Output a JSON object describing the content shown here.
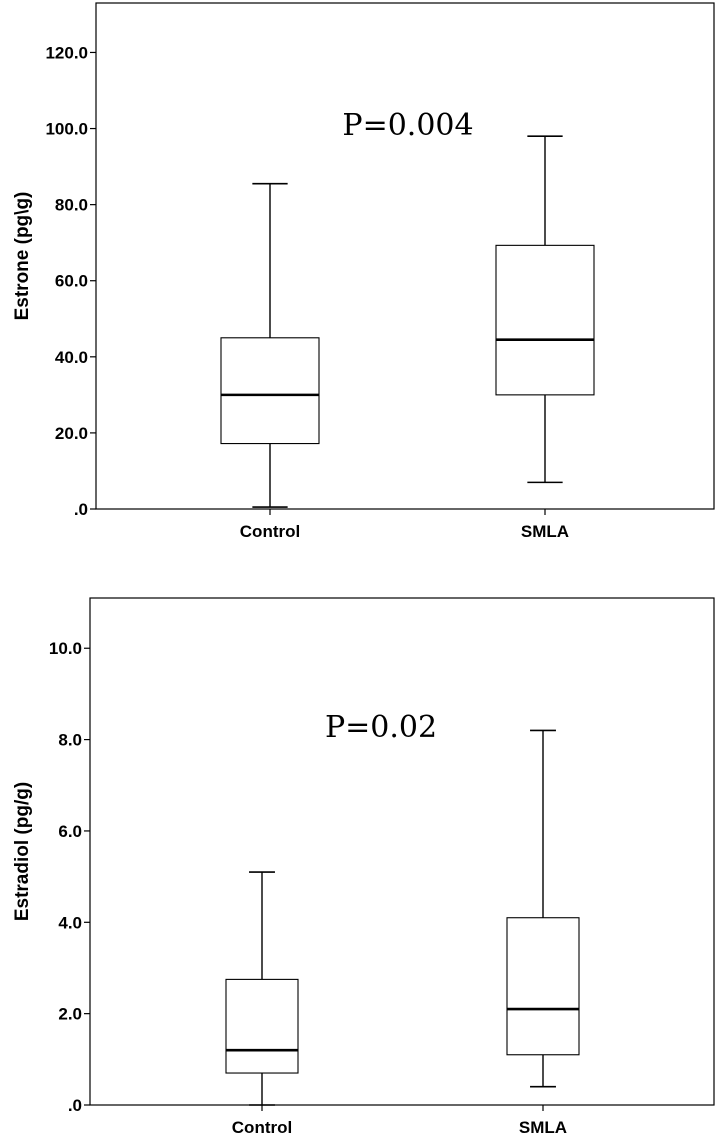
{
  "chart_data": [
    {
      "type": "box",
      "ylabel": "Estrone (pg\\g)",
      "ylim": [
        0,
        133
      ],
      "yticks": [
        0,
        20,
        40,
        60,
        80,
        100,
        120
      ],
      "ytick_labels": [
        ".0",
        "20.0",
        "40.0",
        "60.0",
        "80.0",
        "100.0",
        "120.0"
      ],
      "categories": [
        "Control",
        "SMLA"
      ],
      "annotation": "P=0.004",
      "boxes": [
        {
          "name": "Control",
          "min": 0.5,
          "q1": 17.2,
          "median": 30.0,
          "q3": 45.0,
          "max": 85.5
        },
        {
          "name": "SMLA",
          "min": 7.0,
          "q1": 30.0,
          "median": 44.5,
          "q3": 69.3,
          "max": 98.0
        }
      ]
    },
    {
      "type": "box",
      "ylabel": "Estradiol (pg/g)",
      "ylim": [
        0,
        11.1
      ],
      "yticks": [
        0,
        2,
        4,
        6,
        8,
        10
      ],
      "ytick_labels": [
        ".0",
        "2.0",
        "4.0",
        "6.0",
        "8.0",
        "10.0"
      ],
      "categories": [
        "Control",
        "SMLA"
      ],
      "annotation": "P=0.02",
      "boxes": [
        {
          "name": "Control",
          "min": 0.0,
          "q1": 0.7,
          "median": 1.2,
          "q3": 2.75,
          "max": 5.1
        },
        {
          "name": "SMLA",
          "min": 0.4,
          "q1": 1.1,
          "median": 2.1,
          "q3": 4.1,
          "max": 8.2
        }
      ]
    }
  ]
}
